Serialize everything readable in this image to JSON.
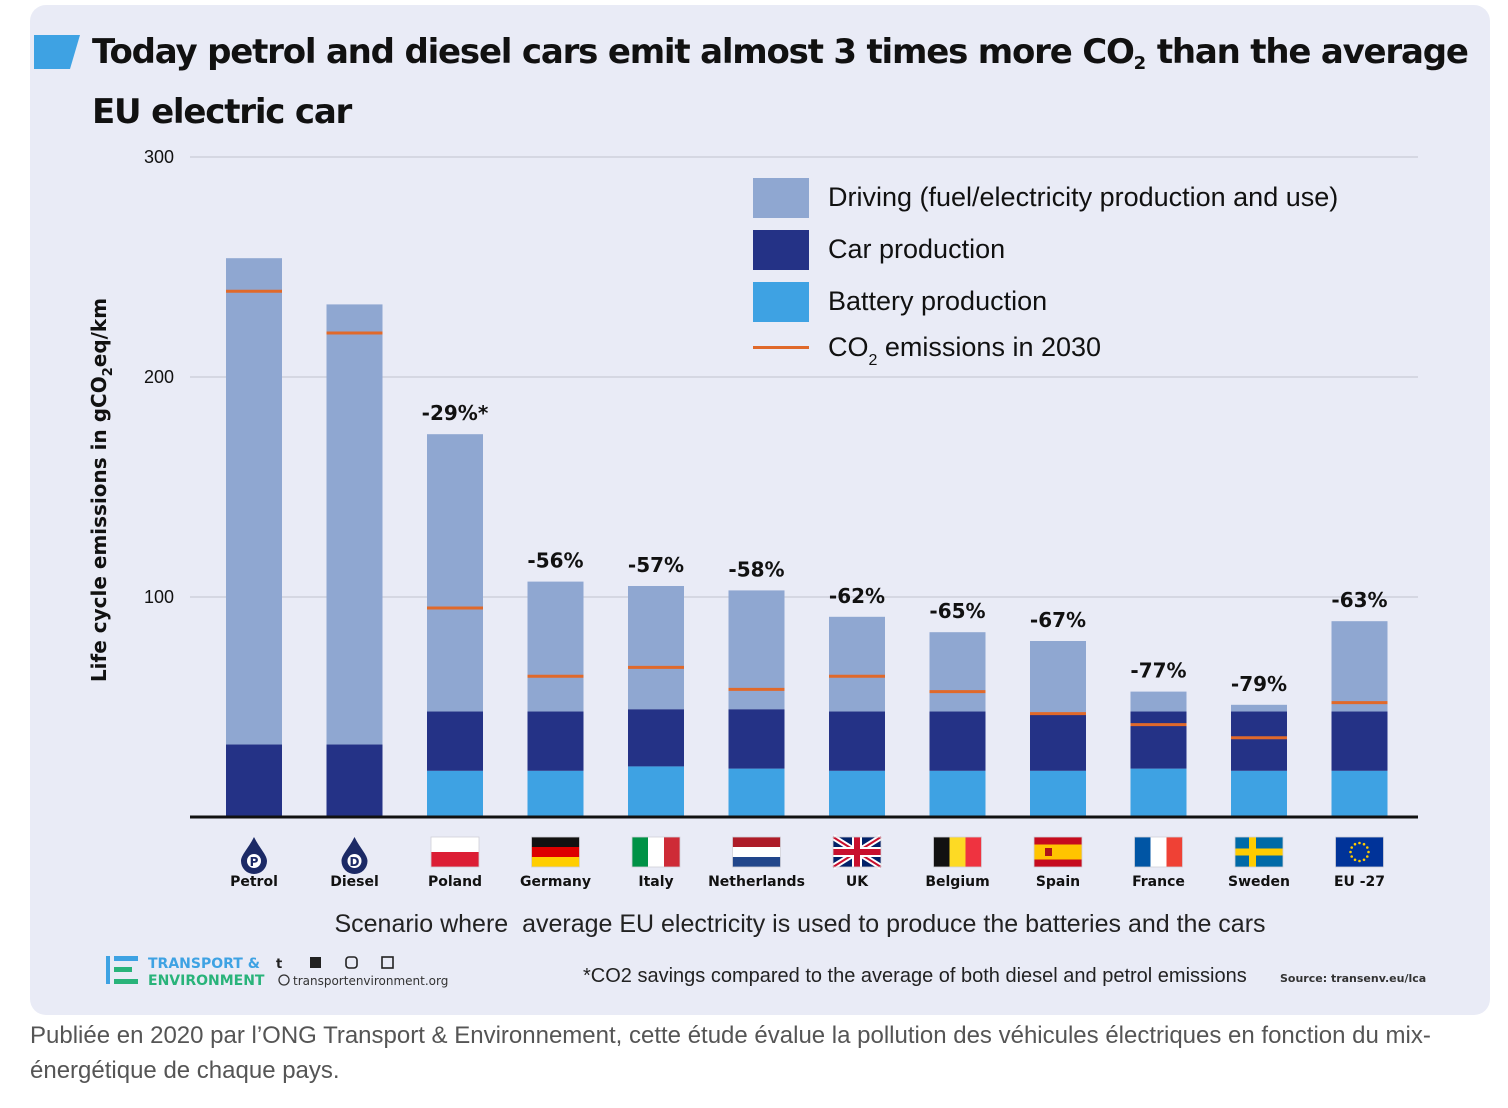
{
  "title": {
    "line1": "Today petrol and diesel cars emit almost 3 times more CO",
    "sub": "2",
    "rest": " than the average",
    "line2": "EU electric car"
  },
  "caption": "Publiée en 2020 par l’ONG Transport & Environnement, cette étude évalue la pollution des véhicules électriques en fonction du mix-énergétique de chaque pays.",
  "colors": {
    "driving": "#8fa7d1",
    "car_production": "#243286",
    "battery_production": "#3ea2e3",
    "co2_2030": "#e0692a",
    "card_bg": "#e9ebf6"
  },
  "footer": {
    "scenario": "Scenario where  average EU electricity is used to produce the batteries and the cars",
    "note": "*CO2 savings compared to the average of both diesel and petrol emissions",
    "source": "Source: transenv.eu/lca",
    "logo_line1": "TRANSPORT &",
    "logo_line2": "ENVIRONMENT",
    "website": "transportenvironment.org"
  },
  "chart_data": {
    "type": "bar",
    "stacked": true,
    "ylabel_parts": [
      "Life  cycle emissions in gCO",
      "2",
      "eq/km"
    ],
    "ylim": [
      0,
      300
    ],
    "yticks": [
      "100",
      "200",
      "300"
    ],
    "grid": true,
    "legend_position": "top-right",
    "legend": [
      {
        "key": "driving",
        "label": "Driving (fuel/electricity production and use)"
      },
      {
        "key": "car_production",
        "label": "Car production"
      },
      {
        "key": "battery_production",
        "label": "Battery production"
      },
      {
        "key": "co2_2030",
        "label_pre": "CO",
        "label_sub": "2",
        "label_post": " emissions in 2030"
      }
    ],
    "categories": [
      "Petrol",
      "Diesel",
      "Poland",
      "Germany",
      "Italy",
      "Netherlands",
      "UK",
      "Belgium",
      "Spain",
      "France",
      "Sweden",
      "EU -27"
    ],
    "flag_icons": [
      "petrol-icon",
      "diesel-icon",
      "flag-poland-icon",
      "flag-germany-icon",
      "flag-italy-icon",
      "flag-netherlands-icon",
      "flag-uk-icon",
      "flag-belgium-icon",
      "flag-spain-icon",
      "flag-france-icon",
      "flag-sweden-icon",
      "flag-eu-icon"
    ],
    "fuel_badges": [
      "P",
      "D"
    ],
    "series": [
      {
        "name": "Battery production",
        "key": "battery_production",
        "values": [
          0,
          0,
          21,
          21,
          23,
          22,
          21,
          21,
          21,
          22,
          21,
          21
        ]
      },
      {
        "name": "Car production",
        "key": "car_production",
        "values": [
          33,
          33,
          27,
          27,
          26,
          27,
          27,
          27,
          26,
          26,
          27,
          27
        ]
      },
      {
        "name": "Driving (fuel/electricity production and use)",
        "key": "driving",
        "values": [
          221,
          200,
          126,
          59,
          56,
          54,
          43,
          36,
          33,
          9,
          3,
          41
        ]
      }
    ],
    "co2_2030": [
      239,
      220,
      95,
      64,
      68,
      58,
      64,
      57,
      47,
      42,
      36,
      52
    ],
    "reduction_labels": [
      "",
      "",
      "-29%*",
      "-56%",
      "-57%",
      "-58%",
      "-62%",
      "-65%",
      "-67%",
      "-77%",
      "-79%",
      "-63%"
    ]
  }
}
